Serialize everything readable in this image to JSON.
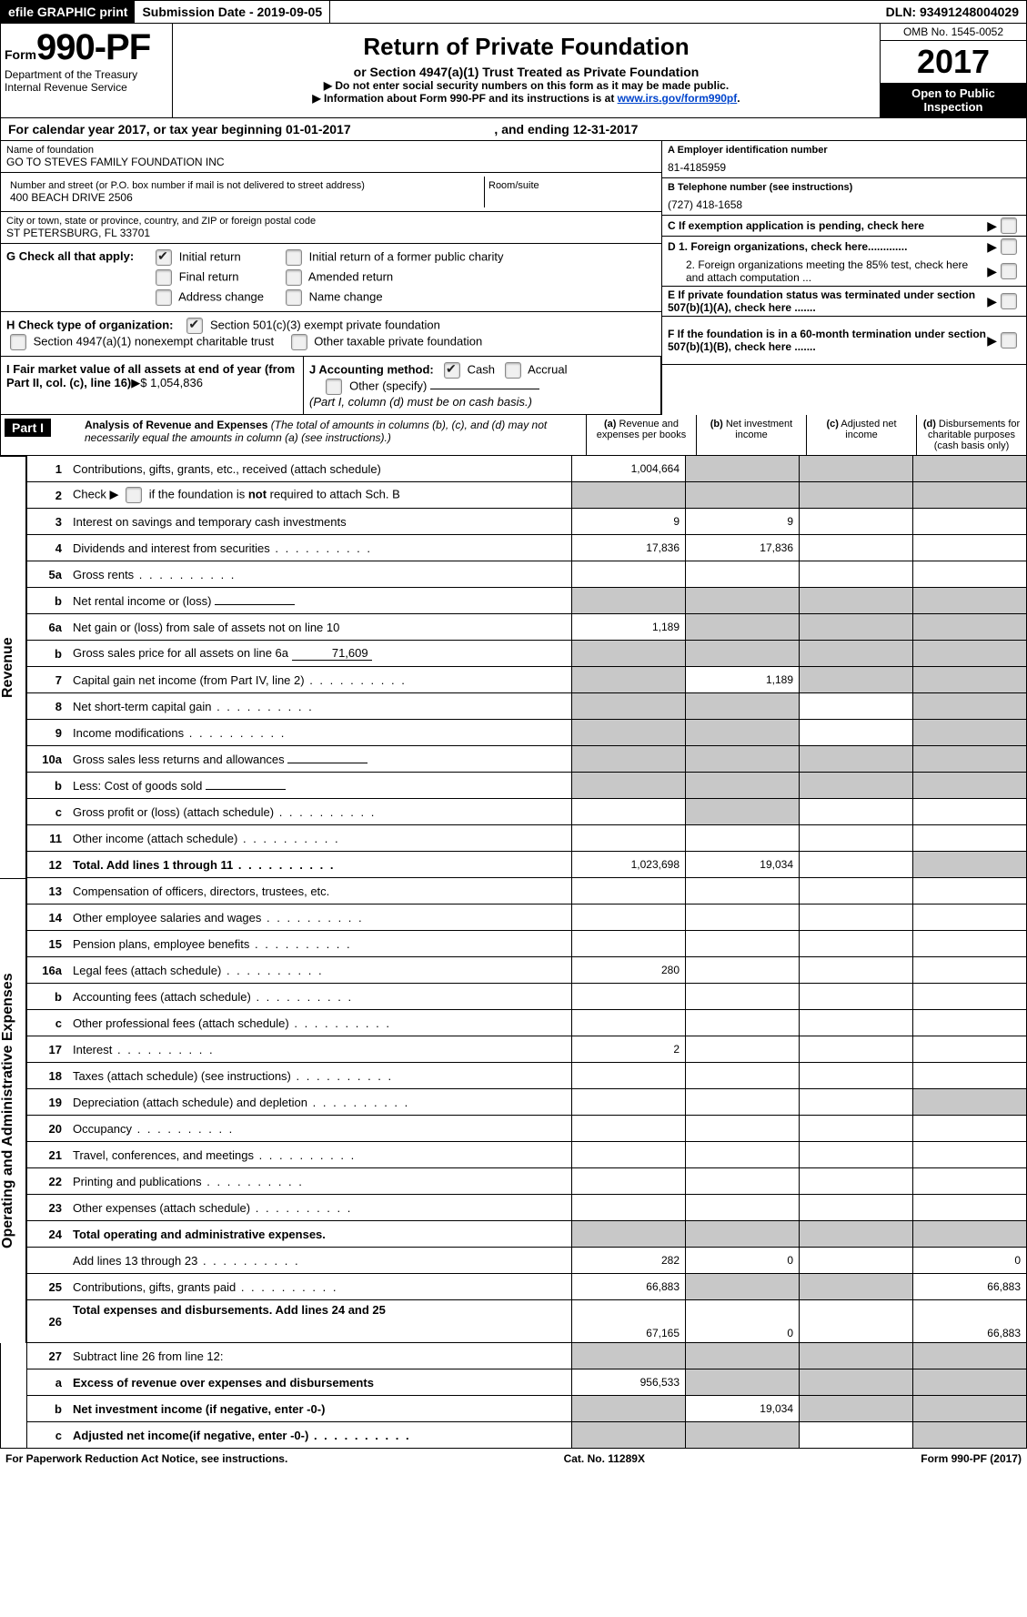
{
  "top": {
    "efile": "efile GRAPHIC print",
    "submission": "Submission Date - 2019-09-05",
    "dln": "DLN: 93491248004029"
  },
  "header": {
    "form_word": "Form",
    "form_num": "990-PF",
    "dept": "Department of the Treasury",
    "irs": "Internal Revenue Service",
    "title": "Return of Private Foundation",
    "subtitle": "or Section 4947(a)(1) Trust Treated as Private Foundation",
    "note1": "▶ Do not enter social security numbers on this form as it may be made public.",
    "note2_pre": "▶ Information about Form 990-PF and its instructions is at ",
    "note2_link": "www.irs.gov/form990pf",
    "omb": "OMB No. 1545-0052",
    "year": "2017",
    "open": "Open to Public Inspection"
  },
  "cal": {
    "line_a": "For calendar year 2017, or tax year beginning 01-01-2017",
    "line_b": ", and ending 12-31-2017"
  },
  "name": {
    "label": "Name of foundation",
    "val": "GO TO STEVES FAMILY FOUNDATION INC"
  },
  "addr": {
    "label": "Number and street (or P.O. box number if mail is not delivered to street address)",
    "val": "400 BEACH DRIVE 2506",
    "room_label": "Room/suite"
  },
  "city": {
    "label": "City or town, state or province, country, and ZIP or foreign postal code",
    "val": "ST PETERSBURG, FL  33701"
  },
  "ein": {
    "label": "A Employer identification number",
    "val": "81-4185959"
  },
  "tel": {
    "label": "B Telephone number (see instructions)",
    "val": "(727) 418-1658"
  },
  "c": "C  If exemption application is pending, check here",
  "g_label": "G Check all that apply:",
  "g_opts": {
    "initial": "Initial return",
    "initial_former": "Initial return of a former public charity",
    "final": "Final return",
    "amended": "Amended return",
    "addr_change": "Address change",
    "name_change": "Name change"
  },
  "h_label": "H Check type of organization:",
  "h_opts": {
    "501c3": "Section 501(c)(3) exempt private foundation",
    "4947": "Section 4947(a)(1) nonexempt charitable trust",
    "other_tax": "Other taxable private foundation"
  },
  "i": {
    "label": "I Fair market value of all assets at end of year (from Part II, col. (c), line 16)",
    "val": "$  1,054,836"
  },
  "j": {
    "label": "J Accounting method:",
    "cash": "Cash",
    "accrual": "Accrual",
    "other": "Other (specify)",
    "note": "(Part I, column (d) must be on cash basis.)"
  },
  "d1": "D 1. Foreign organizations, check here.............",
  "d2": "2. Foreign organizations meeting the 85% test, check here and attach computation ...",
  "e": "E  If private foundation status was terminated under section 507(b)(1)(A), check here .......",
  "f": "F  If the foundation is in a 60-month termination under section 507(b)(1)(B), check here .......",
  "part1": {
    "tag": "Part I",
    "title": "Analysis of Revenue and Expenses",
    "note": "(The total of amounts in columns (b), (c), and (d) may not necessarily equal the amounts in column (a) (see instructions).)",
    "col_a": "Revenue and expenses per books",
    "col_b": "Net investment income",
    "col_c": "Adjusted net income",
    "col_d": "Disbursements for charitable purposes (cash basis only)"
  },
  "sides": {
    "revenue": "Revenue",
    "expenses": "Operating and Administrative Expenses"
  },
  "rows": [
    {
      "n": "1",
      "d": "Contributions, gifts, grants, etc., received (attach schedule)",
      "a": "1,004,664",
      "sb": true,
      "sc": true,
      "sd": true
    },
    {
      "n": "2",
      "d": "Check ▶ ☐ if the foundation is not required to attach Sch. B",
      "raw": true,
      "sa": true,
      "sb": true,
      "sc": true,
      "sd": true
    },
    {
      "n": "3",
      "d": "Interest on savings and temporary cash investments",
      "a": "9",
      "b": "9"
    },
    {
      "n": "4",
      "d": "Dividends and interest from securities",
      "a": "17,836",
      "b": "17,836",
      "dots": true
    },
    {
      "n": "5a",
      "d": "Gross rents",
      "dots": true
    },
    {
      "n": "b",
      "d": "Net rental income or (loss)",
      "inline": true,
      "sa": true,
      "sb": true,
      "sc": true,
      "sd": true
    },
    {
      "n": "6a",
      "d": "Net gain or (loss) from sale of assets not on line 10",
      "a": "1,189",
      "sb": true,
      "sc": true,
      "sd": true
    },
    {
      "n": "b",
      "d": "Gross sales price for all assets on line 6a",
      "inline_val": "71,609",
      "sa": true,
      "sb": true,
      "sc": true,
      "sd": true
    },
    {
      "n": "7",
      "d": "Capital gain net income (from Part IV, line 2)",
      "b": "1,189",
      "sa": true,
      "sc": true,
      "sd": true,
      "dots": true
    },
    {
      "n": "8",
      "d": "Net short-term capital gain",
      "sa": true,
      "sb": true,
      "sd": true,
      "dots": true
    },
    {
      "n": "9",
      "d": "Income modifications",
      "sa": true,
      "sb": true,
      "sd": true,
      "dots": true
    },
    {
      "n": "10a",
      "d": "Gross sales less returns and allowances",
      "inline": true,
      "sa": true,
      "sb": true,
      "sc": true,
      "sd": true
    },
    {
      "n": "b",
      "d": "Less: Cost of goods sold",
      "inline": true,
      "sa": true,
      "sb": true,
      "sc": true,
      "sd": true,
      "dots": true
    },
    {
      "n": "c",
      "d": "Gross profit or (loss) (attach schedule)",
      "sb": true,
      "dots": true
    },
    {
      "n": "11",
      "d": "Other income (attach schedule)",
      "dots": true
    },
    {
      "n": "12",
      "d": "Total. Add lines 1 through 11",
      "a": "1,023,698",
      "b": "19,034",
      "bold": true,
      "sd": true,
      "dots": true
    }
  ],
  "exp_rows": [
    {
      "n": "13",
      "d": "Compensation of officers, directors, trustees, etc."
    },
    {
      "n": "14",
      "d": "Other employee salaries and wages",
      "dots": true
    },
    {
      "n": "15",
      "d": "Pension plans, employee benefits",
      "dots": true
    },
    {
      "n": "16a",
      "d": "Legal fees (attach schedule)",
      "a": "280",
      "dots": true
    },
    {
      "n": "b",
      "d": "Accounting fees (attach schedule)",
      "dots": true
    },
    {
      "n": "c",
      "d": "Other professional fees (attach schedule)",
      "dots": true
    },
    {
      "n": "17",
      "d": "Interest",
      "a": "2",
      "dots": true
    },
    {
      "n": "18",
      "d": "Taxes (attach schedule) (see instructions)",
      "dots": true
    },
    {
      "n": "19",
      "d": "Depreciation (attach schedule) and depletion",
      "sd": true,
      "dots": true
    },
    {
      "n": "20",
      "d": "Occupancy",
      "dots": true
    },
    {
      "n": "21",
      "d": "Travel, conferences, and meetings",
      "dots": true
    },
    {
      "n": "22",
      "d": "Printing and publications",
      "dots": true
    },
    {
      "n": "23",
      "d": "Other expenses (attach schedule)",
      "dots": true
    },
    {
      "n": "24",
      "d": "Total operating and administrative expenses.",
      "bold": true,
      "noborder": true,
      "sa": true,
      "sb": true,
      "sc": true,
      "sd": true
    },
    {
      "n": "",
      "d": "Add lines 13 through 23",
      "a": "282",
      "b": "0",
      "dd": "0",
      "dots": true
    },
    {
      "n": "25",
      "d": "Contributions, gifts, grants paid",
      "a": "66,883",
      "dd": "66,883",
      "sb": true,
      "sc": true,
      "dots": true
    },
    {
      "n": "26",
      "d": "Total expenses and disbursements. Add lines 24 and 25",
      "a": "67,165",
      "b": "0",
      "dd": "66,883",
      "bold": true,
      "tall": true
    }
  ],
  "final_rows": [
    {
      "n": "27",
      "d": "Subtract line 26 from line 12:",
      "sa": true,
      "sb": true,
      "sc": true,
      "sd": true
    },
    {
      "n": "a",
      "d": "Excess of revenue over expenses and disbursements",
      "a": "956,533",
      "bold": true,
      "sb": true,
      "sc": true,
      "sd": true
    },
    {
      "n": "b",
      "d": "Net investment income (if negative, enter -0-)",
      "b": "19,034",
      "bold": true,
      "sa": true,
      "sc": true,
      "sd": true
    },
    {
      "n": "c",
      "d": "Adjusted net income(if negative, enter -0-)",
      "bold": true,
      "sa": true,
      "sb": true,
      "sd": true,
      "dots": true
    }
  ],
  "footer": {
    "left": "For Paperwork Reduction Act Notice, see instructions.",
    "mid": "Cat. No. 11289X",
    "right": "Form 990-PF (2017)"
  }
}
